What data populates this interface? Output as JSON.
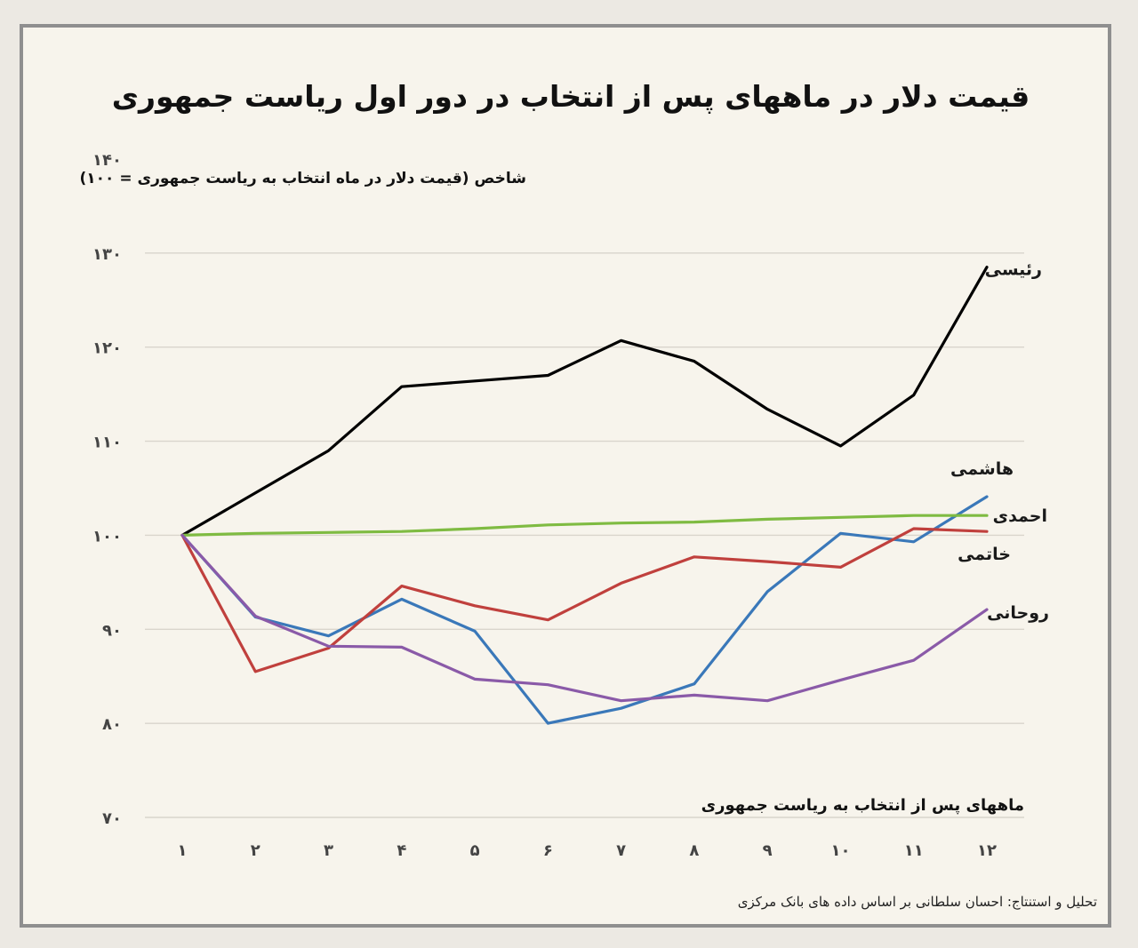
{
  "chart_data": {
    "type": "line",
    "title": "قیمت دلار در ماههای پس از انتخاب در دور اول ریاست جمهوری",
    "subtitle": "شاخص (قیمت دلار در ماه انتخاب به ریاست جمهوری = ۱۰۰)",
    "xlabel": "ماههای پس از انتخاب به ریاست جمهوری",
    "ylabel": "",
    "credit": "تحلیل و استنتاج: احسان سلطانی بر اساس داده های بانک مرکزی",
    "ylim": [
      70,
      140
    ],
    "yticks": [
      70,
      80,
      90,
      100,
      110,
      120,
      130,
      140
    ],
    "ytick_labels": [
      "۷۰",
      "۸۰",
      "۹۰",
      "۱۰۰",
      "۱۱۰",
      "۱۲۰",
      "۱۳۰",
      "۱۴۰"
    ],
    "x": [
      1,
      2,
      3,
      4,
      5,
      6,
      7,
      8,
      9,
      10,
      11,
      12
    ],
    "xtick_labels": [
      "۱",
      "۲",
      "۳",
      "۴",
      "۵",
      "۶",
      "۷",
      "۸",
      "۹",
      "۱۰",
      "۱۱",
      "۱۲"
    ],
    "grid": "horizontal",
    "series": [
      {
        "name": "رئیسی",
        "color": "#000000",
        "values": [
          100,
          104.5,
          109,
          115.8,
          116.4,
          117,
          120.7,
          118.5,
          113.4,
          109.5,
          114.9,
          128.5
        ]
      },
      {
        "name": "هاشمی",
        "color": "#3a78b9",
        "values": [
          100,
          91.3,
          89.3,
          93.2,
          89.8,
          80.0,
          81.6,
          84.2,
          94.0,
          100.2,
          99.3,
          104.1
        ]
      },
      {
        "name": "احمدی",
        "color": "#7fbb42",
        "values": [
          100,
          100.2,
          100.3,
          100.4,
          100.7,
          101.1,
          101.3,
          101.4,
          101.7,
          101.9,
          102.1,
          102.1
        ]
      },
      {
        "name": "خاتمی",
        "color": "#c0403d",
        "values": [
          100,
          85.5,
          88.0,
          94.6,
          92.5,
          91.0,
          94.9,
          97.7,
          97.2,
          96.6,
          100.7,
          100.4
        ]
      },
      {
        "name": "روحانی",
        "color": "#8a5aa8",
        "values": [
          100,
          91.4,
          88.2,
          88.1,
          84.7,
          84.1,
          82.4,
          83.0,
          82.4,
          84.6,
          86.7,
          92.1
        ]
      }
    ]
  }
}
